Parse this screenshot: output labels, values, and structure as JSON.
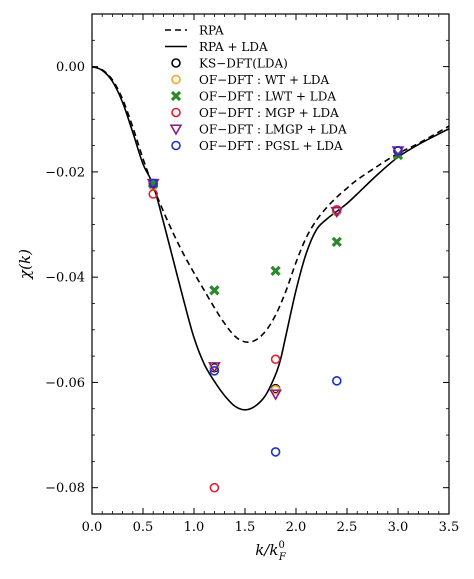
{
  "chart_data": {
    "type": "line",
    "xlabel": "k/k_F^0",
    "ylabel": "χ(k)",
    "xlim": [
      0.0,
      3.5
    ],
    "ylim": [
      -0.085,
      0.01
    ],
    "x_ticks": [
      0.0,
      0.5,
      1.0,
      1.5,
      2.0,
      2.5,
      3.0,
      3.5
    ],
    "x_tick_labels": [
      "0.0",
      "0.5",
      "1.0",
      "1.5",
      "2.0",
      "2.5",
      "3.0",
      "3.5"
    ],
    "y_ticks": [
      0.0,
      -0.02,
      -0.04,
      -0.06,
      -0.08
    ],
    "y_tick_labels": [
      "0.00",
      "−0.02",
      "−0.04",
      "−0.06",
      "−0.08"
    ],
    "grid": false,
    "legend_position": "top-center",
    "curves": [
      {
        "name": "RPA",
        "style": "dashed",
        "color": "#000000",
        "x": [
          0.0,
          0.1,
          0.2,
          0.3,
          0.4,
          0.5,
          0.6,
          0.7,
          0.8,
          0.9,
          1.0,
          1.1,
          1.2,
          1.3,
          1.4,
          1.5,
          1.6,
          1.7,
          1.8,
          1.9,
          2.0,
          2.1,
          2.2,
          2.3,
          2.4,
          2.5,
          2.6,
          2.8,
          3.0,
          3.2,
          3.5
        ],
        "y": [
          0.0,
          -0.0006,
          -0.0025,
          -0.0062,
          -0.0115,
          -0.0175,
          -0.0228,
          -0.0275,
          -0.0318,
          -0.0357,
          -0.0392,
          -0.0425,
          -0.0458,
          -0.0488,
          -0.0512,
          -0.0523,
          -0.052,
          -0.0503,
          -0.0472,
          -0.0427,
          -0.0372,
          -0.0325,
          -0.0292,
          -0.0268,
          -0.0248,
          -0.0231,
          -0.0215,
          -0.0189,
          -0.0165,
          -0.0146,
          -0.0113
        ]
      },
      {
        "name": "RPA + LDA",
        "style": "solid",
        "color": "#000000",
        "x": [
          0.0,
          0.1,
          0.2,
          0.3,
          0.4,
          0.5,
          0.6,
          0.7,
          0.8,
          0.9,
          1.0,
          1.1,
          1.2,
          1.3,
          1.4,
          1.5,
          1.6,
          1.7,
          1.8,
          1.85,
          1.9,
          2.0,
          2.1,
          2.2,
          2.3,
          2.4,
          2.5,
          2.6,
          2.8,
          3.0,
          3.2,
          3.5
        ],
        "y": [
          0.0,
          -0.0007,
          -0.0028,
          -0.0068,
          -0.0125,
          -0.0185,
          -0.0225,
          -0.0295,
          -0.037,
          -0.0445,
          -0.0515,
          -0.0565,
          -0.0598,
          -0.0625,
          -0.0645,
          -0.0652,
          -0.0645,
          -0.0625,
          -0.0585,
          -0.0555,
          -0.0512,
          -0.0425,
          -0.0355,
          -0.031,
          -0.029,
          -0.0275,
          -0.026,
          -0.0242,
          -0.0205,
          -0.0172,
          -0.0148,
          -0.0118
        ]
      }
    ],
    "series": [
      {
        "name": "KS−DFT(LDA)",
        "marker": "circle",
        "color": "#000000",
        "filled": false,
        "x": [
          0.6,
          1.2,
          1.8,
          2.4,
          3.0
        ],
        "y": [
          -0.0226,
          -0.0572,
          -0.0612,
          -0.0275,
          -0.016
        ]
      },
      {
        "name": "OF−DFT : WT + LDA",
        "marker": "circle",
        "color": "#f5a623",
        "filled": false,
        "x": [
          0.6,
          1.2,
          1.8,
          2.4,
          3.0
        ],
        "y": [
          -0.0226,
          -0.057,
          -0.0614,
          -0.0275,
          -0.016
        ]
      },
      {
        "name": "OF−DFT : LWT + LDA",
        "marker": "x",
        "color": "#2a8a2a",
        "filled": true,
        "x": [
          0.6,
          1.2,
          1.8,
          2.4,
          3.0
        ],
        "y": [
          -0.0222,
          -0.0425,
          -0.0388,
          -0.0333,
          -0.0168
        ]
      },
      {
        "name": "OF−DFT : MGP + LDA",
        "marker": "circle",
        "color": "#e0202a",
        "filled": false,
        "x": [
          0.6,
          1.2,
          1.8,
          2.4,
          3.0
        ],
        "y": [
          -0.0242,
          -0.08,
          -0.0556,
          -0.0272,
          -0.016
        ]
      },
      {
        "name": "OF−DFT : LMGP + LDA",
        "marker": "triangle-down",
        "color": "#8a1a8a",
        "filled": false,
        "x": [
          0.6,
          1.2,
          1.8,
          2.4,
          3.0
        ],
        "y": [
          -0.0222,
          -0.057,
          -0.0622,
          -0.0275,
          -0.016
        ]
      },
      {
        "name": "OF−DFT : PGSL + LDA",
        "marker": "circle",
        "color": "#1a30d0",
        "filled": false,
        "x": [
          0.6,
          1.2,
          1.8,
          2.4,
          3.0
        ],
        "y": [
          -0.0222,
          -0.0578,
          -0.0732,
          -0.0597,
          -0.016
        ]
      }
    ]
  }
}
